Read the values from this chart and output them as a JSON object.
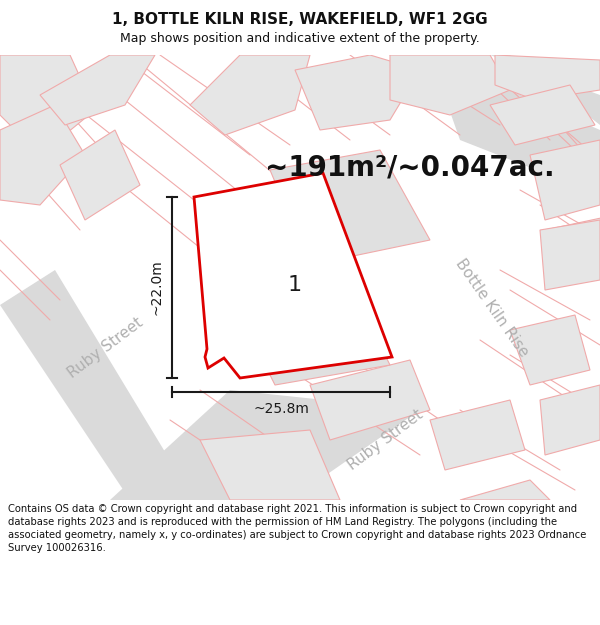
{
  "title": "1, BOTTLE KILN RISE, WAKEFIELD, WF1 2GG",
  "subtitle": "Map shows position and indicative extent of the property.",
  "area_label": "~191m²/~0.047ac.",
  "parcel_number": "1",
  "dim_width": "~25.8m",
  "dim_height": "~22.0m",
  "footer": "Contains OS data © Crown copyright and database right 2021. This information is subject to Crown copyright and database rights 2023 and is reproduced with the permission of HM Land Registry. The polygons (including the associated geometry, namely x, y co-ordinates) are subject to Crown copyright and database rights 2023 Ordnance Survey 100026316.",
  "bg_color": "#f2f2f2",
  "bld_fill": "#e6e6e6",
  "bld_stroke_light": "#f0aaaa",
  "bld_stroke_dark": "#e07070",
  "parcel_fill": "#ffffff",
  "parcel_stroke": "#dd0000",
  "parcel_fill_alpha": 0.85,
  "road_fill": "#dadada",
  "street_color": "#b0b0b0",
  "dim_color": "#1a1a1a",
  "title_fontsize": 11,
  "subtitle_fontsize": 9,
  "area_fontsize": 20,
  "parcel_num_fontsize": 16,
  "street_fontsize": 11,
  "dim_fontsize": 10,
  "footer_fontsize": 7.2
}
